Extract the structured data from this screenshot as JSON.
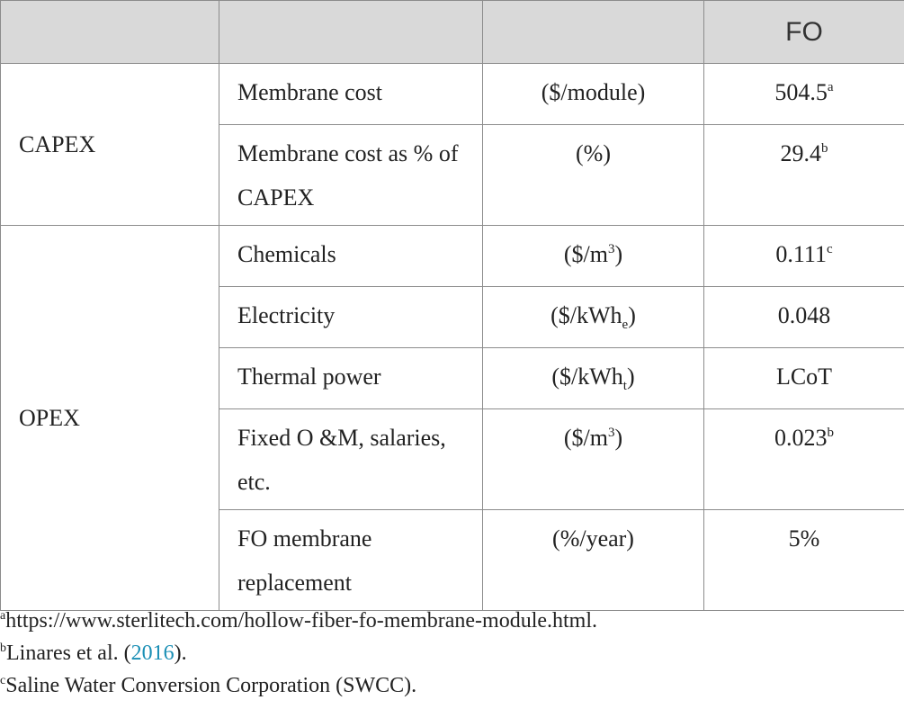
{
  "table": {
    "header": [
      "",
      "",
      "",
      "FO"
    ],
    "groups": {
      "capex": "CAPEX",
      "opex": "OPEX"
    },
    "rows": [
      {
        "item": "Membrane cost",
        "unit": "($/module)",
        "value": "504.5",
        "value_sup": "a"
      },
      {
        "item": "Membrane cost as % of CAPEX",
        "unit": "(%)",
        "value": "29.4",
        "value_sup": "b"
      },
      {
        "item": "Chemicals",
        "unit_pre": "($/m",
        "unit_sup": "3",
        "unit_post": ")",
        "value": "0.111",
        "value_sup": "c"
      },
      {
        "item": "Electricity",
        "unit_pre": "($/kWh",
        "unit_sub": "e",
        "unit_post": ")",
        "value": "0.048"
      },
      {
        "item": "Thermal power",
        "unit_pre": "($/kWh",
        "unit_sub": "t",
        "unit_post": ")",
        "value": "LCoT"
      },
      {
        "item": "Fixed O &M, salaries, etc.",
        "unit_pre": "($/m",
        "unit_sup": "3",
        "unit_post": ")",
        "value": "0.023",
        "value_sup": "b"
      },
      {
        "item": "FO membrane replacement",
        "unit": "(%/year)",
        "value": "5%"
      }
    ]
  },
  "footnotes": [
    {
      "mark": "a",
      "text": "https://www.sterlitech.com/hollow-fiber-fo-membrane-module.html."
    },
    {
      "mark": "b",
      "text_pre": "Linares et al. (",
      "cite": "2016",
      "text_post": ")."
    },
    {
      "mark": "c",
      "text": "Saline Water Conversion Corporation (SWCC)."
    }
  ],
  "colors": {
    "header_bg": "#d9d9d9",
    "border": "#8c8c8c",
    "link": "#1a8fb5"
  }
}
